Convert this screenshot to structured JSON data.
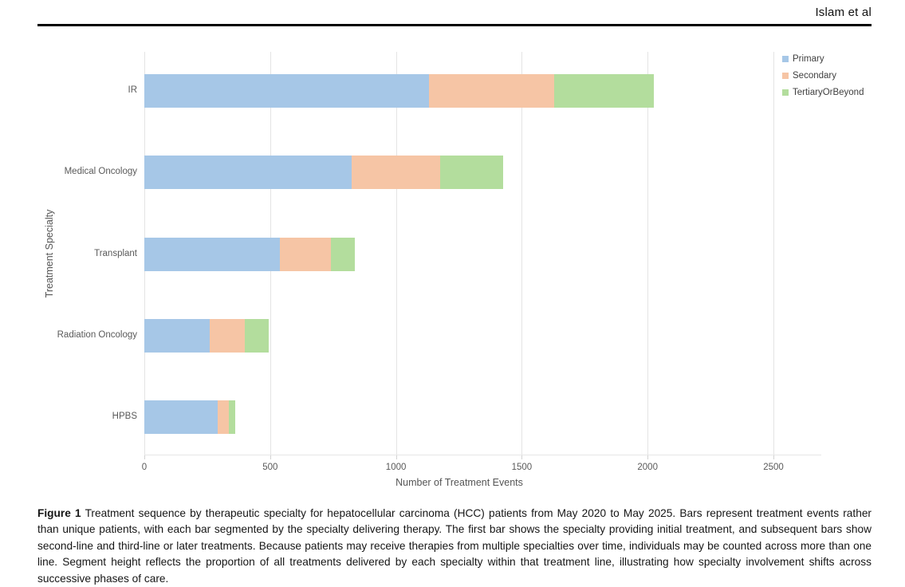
{
  "page": {
    "header": {
      "running_head": "Islam et al"
    },
    "caption": {
      "label": "Figure 1",
      "text": "Treatment sequence by therapeutic specialty for hepatocellular carcinoma (HCC) patients from May 2020 to May 2025. Bars represent treatment events rather than unique patients, with each bar segmented by the specialty delivering therapy. The first bar shows the specialty providing initial treatment, and subsequent bars show second-line and third-line or later treatments. Because patients may receive therapies from multiple specialties over time, individuals may be counted across more than one line. Segment height reflects the proportion of all treatments delivered by each specialty within that treatment line, illustrating how specialty involvement shifts across successive phases of care."
    }
  },
  "chart_data": {
    "type": "bar",
    "orientation": "horizontal",
    "stacked": true,
    "title": "",
    "xlabel": "Number of Treatment Events",
    "ylabel": "Treatment Specialty",
    "categories": [
      "IR",
      "Medical Oncology",
      "Transplant",
      "Radiation Oncology",
      "HPBS"
    ],
    "series": [
      {
        "name": "Primary",
        "color": "#a6c7e7",
        "values": [
          1130,
          825,
          540,
          260,
          290
        ]
      },
      {
        "name": "Secondary",
        "color": "#f6c5a5",
        "values": [
          500,
          350,
          200,
          140,
          45
        ]
      },
      {
        "name": "TertiaryOrBeyond",
        "color": "#b3dd9d",
        "values": [
          395,
          250,
          95,
          95,
          25
        ]
      }
    ],
    "totals": [
      2025,
      1425,
      835,
      495,
      360
    ],
    "xlim": [
      0,
      2500
    ],
    "xticks": [
      0,
      500,
      1000,
      1500,
      2000,
      2500
    ],
    "grid": "vertical",
    "legend_position": "top-right",
    "colors": {
      "gridline": "#e4e4e4",
      "tick_text": "#5a5a5a",
      "axis_title_text": "#555555"
    }
  }
}
